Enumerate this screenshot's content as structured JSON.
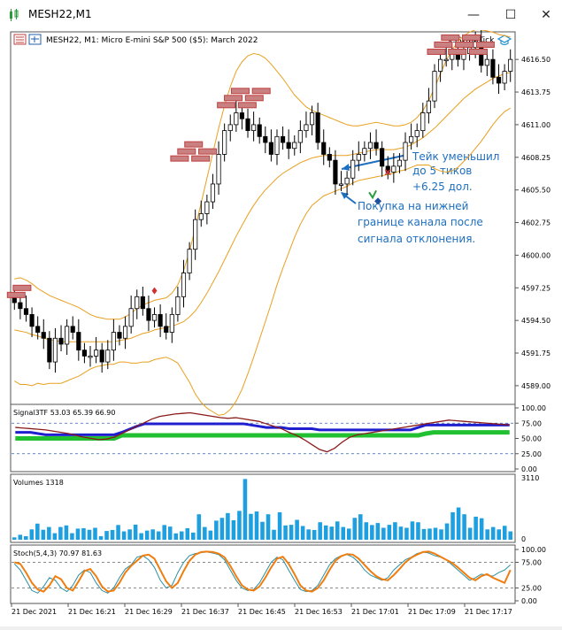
{
  "window": {
    "title": "MESH22,M1",
    "minimize_label": "—",
    "maximize_label": "☐",
    "close_label": "✕"
  },
  "chart_header": {
    "symbol_text": "MESH22, M1:  Micro E-mini S&P 500 ($5): March 2022",
    "indicator_tag": "xsScalpTick"
  },
  "annotations": {
    "take_profit": [
      "Тейк уменьшил",
      "до 5 тиков",
      "+6.25 дол."
    ],
    "buy": [
      "Покупка на  нижней",
      "границе канала после",
      "сигнала отклонения."
    ]
  },
  "colors": {
    "candle_bull": "#ffffff",
    "candle_bear": "#000000",
    "bands": "#e8a020",
    "levels": "#c04040",
    "annotation": "#1e6fbf",
    "signal_blue": "#1f1fd0",
    "signal_green": "#20c030",
    "signal_maroon": "#8b1a1a",
    "volume_bar": "#1ea0e0",
    "stoch_main": "#2a8fa0",
    "stoch_signal": "#f07d10"
  },
  "chart_data": [
    {
      "type": "candlestick",
      "title": "MESH22, M1:  Micro E-mini S&P 500 ($5): March 2022",
      "ylim": [
        4587.5,
        4618.75
      ],
      "y_ticks": [
        "4616.50",
        "4613.75",
        "4611.00",
        "4608.25",
        "4605.50",
        "4602.75",
        "4600.00",
        "4597.25",
        "4594.50",
        "4591.75",
        "4589.00"
      ],
      "y_tick_values": [
        4616.5,
        4613.75,
        4611.0,
        4608.25,
        4605.5,
        4602.75,
        4600.0,
        4597.25,
        4594.5,
        4591.75,
        4589.0
      ],
      "x_ticks": [
        "21 Dec 2021",
        "21 Dec 16:21",
        "21 Dec 16:29",
        "21 Dec 16:37",
        "21 Dec 16:45",
        "21 Dec 16:53",
        "21 Dec 17:01",
        "21 Dec 17:09",
        "21 Dec 17:17"
      ],
      "close": [
        4596.0,
        4595.5,
        4595.0,
        4594.0,
        4593.5,
        4593.0,
        4591.0,
        4593.0,
        4592.5,
        4594.0,
        4593.5,
        4592.0,
        4591.5,
        4591.5,
        4592.0,
        4591.0,
        4592.0,
        4593.5,
        4593.0,
        4594.0,
        4595.5,
        4596.5,
        4595.5,
        4594.5,
        4595.0,
        4594.0,
        4593.5,
        4595.0,
        4596.5,
        4598.5,
        4600.5,
        4603.0,
        4603.5,
        4604.5,
        4606.0,
        4608.5,
        4610.5,
        4611.0,
        4612.0,
        4611.5,
        4610.5,
        4611.0,
        4610.0,
        4609.5,
        4608.5,
        4610.0,
        4609.5,
        4609.0,
        4609.5,
        4610.5,
        4611.0,
        4612.0,
        4609.5,
        4608.5,
        4608.0,
        4606.0,
        4606.0,
        4606.5,
        4608.0,
        4608.5,
        4609.0,
        4609.5,
        4609.0,
        4607.5,
        4607.0,
        4607.5,
        4608.0,
        4609.5,
        4610.0,
        4610.5,
        4612.0,
        4613.0,
        4615.5,
        4616.5,
        4616.5,
        4617.0,
        4616.5,
        4617.0,
        4617.5,
        4618.0,
        4616.0,
        4616.5,
        4615.0,
        4614.5,
        4615.5,
        4616.5
      ],
      "series": [
        {
          "name": "",
          "kind": "bollinger_upper",
          "values": [
            4598.0,
            4598.1,
            4597.9,
            4597.6,
            4597.2,
            4596.9,
            4596.6,
            4596.4,
            4596.2,
            4596.0,
            4595.8,
            4595.6,
            4595.3,
            4595.0,
            4594.8,
            4594.7,
            4594.6,
            4594.6,
            4594.6,
            4594.8,
            4595.1,
            4595.5,
            4595.8,
            4596.0,
            4596.2,
            4596.3,
            4596.4,
            4596.8,
            4597.5,
            4598.7,
            4600.3,
            4602.3,
            4604.4,
            4606.5,
            4608.6,
            4610.7,
            4612.6,
            4614.2,
            4615.5,
            4616.3,
            4616.8,
            4617.0,
            4616.9,
            4616.6,
            4616.1,
            4615.5,
            4614.9,
            4614.2,
            4613.5,
            4613.0,
            4612.5,
            4612.2,
            4612.0,
            4611.8,
            4611.6,
            4611.4,
            4611.2,
            4611.0,
            4610.9,
            4610.9,
            4611.0,
            4611.1,
            4611.2,
            4611.1,
            4611.0,
            4610.9,
            4610.9,
            4611.0,
            4611.2,
            4611.6,
            4612.2,
            4613.0,
            4614.1,
            4615.3,
            4616.4,
            4617.3,
            4618.0,
            4618.5,
            4618.8,
            4619.0,
            4619.0,
            4618.9,
            4618.8,
            4618.6,
            4618.5,
            4618.4
          ]
        },
        {
          "name": "",
          "kind": "bollinger_middle",
          "values": [
            4593.7,
            4593.6,
            4593.5,
            4593.3,
            4593.2,
            4593.0,
            4592.9,
            4592.8,
            4592.7,
            4592.7,
            4592.7,
            4592.7,
            4592.7,
            4592.7,
            4592.7,
            4592.7,
            4592.7,
            4592.7,
            4592.8,
            4592.9,
            4593.0,
            4593.2,
            4593.4,
            4593.5,
            4593.7,
            4593.8,
            4593.9,
            4594.0,
            4594.2,
            4594.4,
            4594.8,
            4595.3,
            4596.0,
            4596.8,
            4597.7,
            4598.6,
            4599.6,
            4600.6,
            4601.6,
            4602.5,
            4603.4,
            4604.2,
            4604.9,
            4605.5,
            4606.0,
            4606.5,
            4606.9,
            4607.2,
            4607.5,
            4607.8,
            4608.0,
            4608.2,
            4608.3,
            4608.4,
            4608.4,
            4608.4,
            4608.4,
            4608.4,
            4608.5,
            4608.6,
            4608.7,
            4608.8,
            4608.9,
            4608.9,
            4608.9,
            4608.9,
            4609.0,
            4609.1,
            4609.3,
            4609.6,
            4609.9,
            4610.3,
            4610.7,
            4611.2,
            4611.7,
            4612.2,
            4612.7,
            4613.2,
            4613.6,
            4614.0,
            4614.3,
            4614.6,
            4614.9,
            4615.1,
            4615.3,
            4615.4
          ]
        },
        {
          "name": "",
          "kind": "bollinger_lower",
          "values": [
            4589.4,
            4589.1,
            4589.1,
            4589.0,
            4589.2,
            4589.1,
            4589.2,
            4589.2,
            4589.2,
            4589.4,
            4589.6,
            4589.8,
            4590.1,
            4590.4,
            4590.6,
            4590.7,
            4590.8,
            4590.8,
            4591.0,
            4591.0,
            4590.9,
            4590.9,
            4591.0,
            4591.0,
            4591.2,
            4591.3,
            4591.4,
            4591.2,
            4590.9,
            4590.1,
            4589.3,
            4588.3,
            4587.6,
            4587.1,
            4586.8,
            4586.5,
            4586.6,
            4587.0,
            4587.7,
            4588.7,
            4590.0,
            4591.4,
            4592.9,
            4594.4,
            4595.9,
            4597.5,
            4598.9,
            4600.2,
            4601.5,
            4602.6,
            4603.5,
            4604.2,
            4604.6,
            4605.0,
            4605.2,
            4605.4,
            4605.6,
            4605.8,
            4606.1,
            4606.3,
            4606.4,
            4606.5,
            4606.6,
            4606.7,
            4606.8,
            4606.9,
            4607.1,
            4607.2,
            4607.4,
            4607.6,
            4607.6,
            4607.6,
            4607.3,
            4607.1,
            4607.0,
            4607.1,
            4607.4,
            4607.9,
            4608.4,
            4609.0,
            4609.6,
            4610.3,
            4611.0,
            4611.6,
            4612.1,
            4612.4
          ]
        }
      ],
      "levels": [
        4596.5,
        4608.0,
        4612.5,
        4617.0
      ],
      "markers": [
        {
          "x": 24,
          "y": 4597.0,
          "kind": "sell-signal"
        },
        {
          "x": 62,
          "y": 4605.0,
          "kind": "buy-signal"
        },
        {
          "x": 64,
          "y": 4607.0,
          "kind": "take-profit"
        }
      ]
    },
    {
      "type": "line",
      "title": "Signal3TF 53.03 65.39 66.90",
      "ylim": [
        0,
        100
      ],
      "y_ticks": [
        "100.00",
        "75.00",
        "50.00",
        "25.00",
        "0.00"
      ],
      "series": [
        {
          "name": "",
          "values": [
            68,
            67,
            66,
            65,
            64,
            62,
            60,
            58,
            55,
            52,
            50,
            48,
            49,
            52,
            58,
            64,
            70,
            76,
            82,
            86,
            88,
            90,
            91,
            92,
            90,
            88,
            86,
            84,
            83,
            84,
            82,
            80,
            78,
            74,
            70,
            66,
            60,
            55,
            48,
            40,
            32,
            28,
            34,
            44,
            52,
            56,
            58,
            60,
            62,
            64,
            66,
            68,
            70,
            72,
            74,
            76,
            78,
            80,
            79,
            78,
            77,
            76,
            75,
            74,
            73,
            72
          ]
        },
        {
          "name": "",
          "values": [
            60,
            60,
            60,
            58,
            56,
            56,
            56,
            56,
            56,
            56,
            56,
            56,
            56,
            56,
            60,
            65,
            70,
            74,
            74,
            74,
            74,
            74,
            74,
            74,
            74,
            74,
            74,
            74,
            74,
            74,
            74,
            72,
            70,
            68,
            68,
            68,
            66,
            66,
            66,
            66,
            64,
            64,
            64,
            64,
            64,
            64,
            64,
            64,
            64,
            64,
            64,
            64,
            64,
            68,
            72,
            72,
            72,
            72,
            72,
            72,
            72,
            72,
            72,
            72,
            72,
            72
          ]
        },
        {
          "name": "",
          "values": [
            50,
            50,
            50,
            50,
            50,
            50,
            50,
            50,
            50,
            50,
            50,
            50,
            50,
            50,
            55,
            55,
            55,
            55,
            55,
            55,
            55,
            55,
            55,
            55,
            55,
            55,
            55,
            55,
            55,
            55,
            55,
            55,
            55,
            55,
            55,
            55,
            55,
            55,
            55,
            55,
            55,
            55,
            55,
            55,
            55,
            55,
            55,
            55,
            55,
            55,
            55,
            55,
            55,
            55,
            58,
            60,
            60,
            60,
            60,
            60,
            60,
            60,
            60,
            60,
            60,
            60
          ]
        }
      ]
    },
    {
      "type": "bar",
      "title": "Volumes 1318",
      "ylim": [
        0,
        3110
      ],
      "y_ticks": [
        "3110",
        "0"
      ],
      "values": [
        120,
        250,
        180,
        520,
        810,
        500,
        640,
        330,
        640,
        720,
        330,
        560,
        580,
        500,
        600,
        180,
        440,
        490,
        740,
        420,
        520,
        760,
        330,
        460,
        520,
        420,
        740,
        660,
        320,
        420,
        580,
        360,
        1280,
        640,
        460,
        960,
        1100,
        1340,
        980,
        1450,
        3050,
        1300,
        1420,
        900,
        1280,
        500,
        1380,
        720,
        750,
        1000,
        690,
        520,
        490,
        880,
        720,
        660,
        920,
        640,
        560,
        1100,
        1280,
        880,
        740,
        840,
        600,
        750,
        880,
        660,
        600,
        920,
        880,
        540,
        560,
        600,
        520,
        820,
        1380,
        1620,
        1280,
        600,
        1160,
        1080,
        520,
        640,
        520,
        700,
        420
      ]
    },
    {
      "type": "line",
      "title": "Stoch(5,4,3) 70.97 81.63",
      "ylim": [
        0,
        100
      ],
      "y_ticks": [
        "100.00",
        "75.00",
        "25.00",
        "0.00"
      ],
      "series": [
        {
          "name": "",
          "values": [
            72,
            60,
            40,
            20,
            15,
            28,
            45,
            40,
            25,
            18,
            30,
            50,
            60,
            55,
            35,
            20,
            15,
            25,
            45,
            62,
            70,
            85,
            88,
            80,
            65,
            40,
            25,
            30,
            55,
            75,
            88,
            92,
            94,
            95,
            93,
            90,
            80,
            60,
            40,
            25,
            20,
            22,
            35,
            55,
            75,
            85,
            80,
            60,
            40,
            22,
            18,
            20,
            30,
            50,
            70,
            82,
            88,
            90,
            85,
            75,
            60,
            50,
            45,
            40,
            45,
            60,
            70,
            80,
            85,
            92,
            95,
            93,
            88,
            85,
            80,
            70,
            60,
            50,
            40,
            45,
            52,
            50,
            48,
            55,
            60,
            70
          ]
        },
        {
          "name": "",
          "values": [
            75,
            72,
            55,
            35,
            22,
            18,
            30,
            48,
            42,
            25,
            20,
            38,
            58,
            62,
            48,
            28,
            18,
            20,
            35,
            55,
            68,
            78,
            88,
            90,
            82,
            60,
            38,
            25,
            35,
            58,
            78,
            90,
            95,
            96,
            95,
            92,
            85,
            68,
            48,
            30,
            22,
            20,
            28,
            45,
            65,
            82,
            86,
            72,
            52,
            30,
            20,
            18,
            25,
            40,
            60,
            78,
            87,
            91,
            90,
            82,
            70,
            58,
            48,
            42,
            40,
            50,
            62,
            75,
            84,
            90,
            95,
            96,
            92,
            86,
            80,
            74,
            65,
            55,
            45,
            40,
            48,
            52,
            45,
            40,
            35,
            60
          ]
        }
      ]
    }
  ]
}
